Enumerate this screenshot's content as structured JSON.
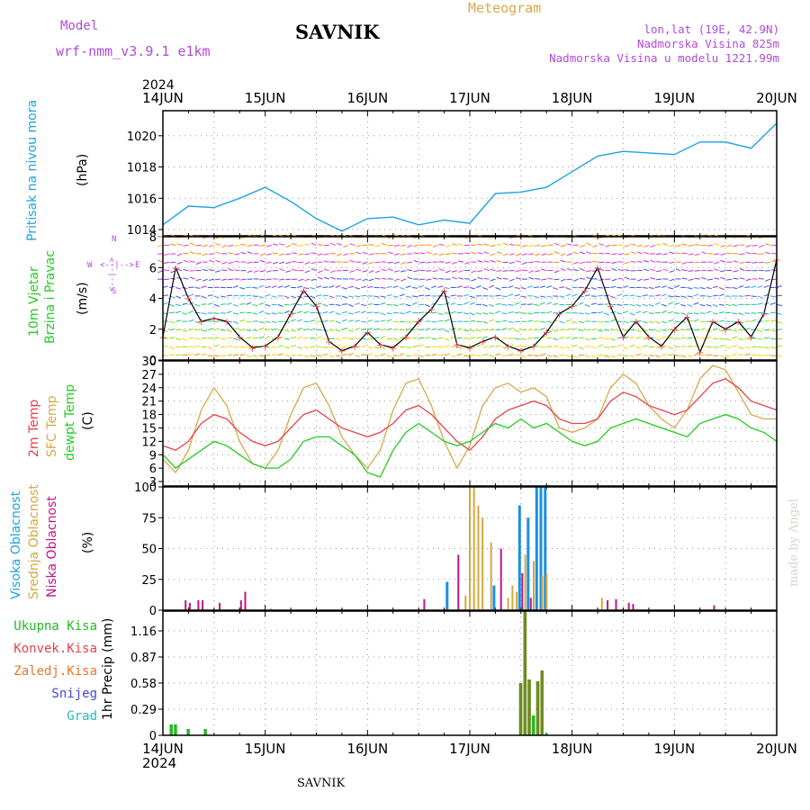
{
  "header": {
    "model_label": "Model",
    "model_name": "wrf-nmm_v3.9.1  e1km",
    "station": "SAVNIK",
    "meteogram": "Meteogram",
    "lonlat": "lon,lat (19E, 42.9N)",
    "elevation": "Nadmorska Visina 825m",
    "model_elevation": "Nadmorska Visina u modelu 1221.99m",
    "watermark": "made by Angel",
    "footer_station": "SAVNIK"
  },
  "colors": {
    "pressure": "#1ba3e0",
    "temp2m": "#e8424a",
    "sfc": "#d8a84a",
    "dewpt": "#22cc22",
    "high_cloud": "#1b8fe0",
    "mid_cloud": "#d4a840",
    "low_cloud": "#c0128a",
    "precip_total": "#22bb22",
    "precip_conv": "#e8424a",
    "precip_strat": "#e8742a",
    "snow": "#4444dd",
    "hail": "#22bbbb",
    "violet": "#b04ad8"
  },
  "time_axis": {
    "top_year": "2024",
    "bottom_year": "2024",
    "labels": [
      "14JUN",
      "15JUN",
      "16JUN",
      "17JUN",
      "18JUN",
      "19JUN",
      "20JUN"
    ]
  },
  "panels": {
    "pressure": {
      "label": "Pritisak na nivou mora",
      "unit": "(hPa)"
    },
    "wind": {
      "label_line1": "10m Vjetar",
      "label_line2": "Brzina i Pravac",
      "unit": "(m/s)",
      "compass_n": "N",
      "compass_s": "S",
      "compass_w": "W",
      "compass_e": "E",
      "compass_ns": "<--|-->",
      "compass_we": "<--|-->"
    },
    "temp": {
      "label_2m": "2m Temp",
      "label_sfc": "SFC Temp",
      "label_dew": "dewpt Temp",
      "unit": "(C)"
    },
    "cloud": {
      "label_high": "Visoka Oblacnost",
      "label_mid": "Srednja Oblacnost",
      "label_low": "Niska Oblacnost",
      "unit": "(%)"
    },
    "precip": {
      "legend": [
        "Ukupna Kisa",
        "Konvek.Kisa",
        "Zaledj.Kisa",
        "Snijeg",
        "Grad"
      ],
      "unit": "1hr Precip (mm)"
    }
  },
  "chart_data": [
    {
      "type": "line",
      "title": "Pritisak na nivou mora",
      "ylabel": "(hPa)",
      "ylim": [
        1013.6,
        1021.6
      ],
      "yticks": [
        "1014",
        "1016",
        "1018",
        "1020"
      ],
      "x_hours": [
        0,
        6,
        12,
        18,
        24,
        30,
        36,
        42,
        48,
        54,
        60,
        66,
        72,
        78,
        84,
        90,
        96,
        102,
        108,
        114,
        120,
        126,
        132,
        138,
        144
      ],
      "series": [
        {
          "values": [
            1014.3,
            1015.5,
            1015.4,
            1016.0,
            1016.7,
            1015.8,
            1014.7,
            1013.9,
            1014.7,
            1014.8,
            1014.3,
            1014.6,
            1014.4,
            1016.3,
            1016.4,
            1016.7,
            1017.7,
            1018.7,
            1019.0,
            1018.9,
            1018.8,
            1019.6,
            1019.6,
            1019.2,
            1020.8
          ]
        }
      ]
    },
    {
      "type": "line",
      "title": "10m Vjetar Brzina i Pravac",
      "ylabel": "(m/s)",
      "ylim": [
        0,
        8
      ],
      "yticks": [
        "0",
        "2",
        "4",
        "6",
        "8"
      ],
      "x_hours": [
        0,
        3,
        6,
        9,
        12,
        15,
        18,
        21,
        24,
        27,
        30,
        33,
        36,
        39,
        42,
        45,
        48,
        51,
        54,
        57,
        60,
        63,
        66,
        69,
        72,
        75,
        78,
        81,
        84,
        87,
        90,
        93,
        96,
        99,
        102,
        105,
        108,
        111,
        114,
        117,
        120,
        123,
        126,
        129,
        132,
        135,
        138,
        141,
        144
      ],
      "series": [
        {
          "values": [
            1.5,
            6.0,
            4.0,
            2.5,
            2.7,
            2.5,
            1.5,
            0.8,
            0.9,
            1.5,
            3.0,
            4.5,
            3.5,
            1.2,
            0.6,
            0.9,
            1.8,
            1.0,
            0.8,
            1.5,
            2.5,
            3.3,
            4.5,
            1.0,
            0.8,
            1.2,
            1.5,
            0.9,
            0.6,
            0.9,
            1.8,
            3.0,
            3.5,
            4.5,
            6.0,
            3.5,
            1.5,
            2.5,
            1.5,
            0.9,
            2.0,
            2.8,
            0.5,
            2.5,
            2.0,
            2.5,
            1.5,
            3.0,
            6.5
          ]
        }
      ]
    },
    {
      "type": "line",
      "title": "2m Temp / SFC Temp / dewpt Temp",
      "ylabel": "(C)",
      "ylim": [
        2,
        30
      ],
      "yticks": [
        "3",
        "6",
        "9",
        "12",
        "15",
        "18",
        "21",
        "24",
        "27",
        "30"
      ],
      "x_hours": [
        0,
        3,
        6,
        9,
        12,
        15,
        18,
        21,
        24,
        27,
        30,
        33,
        36,
        39,
        42,
        45,
        48,
        51,
        54,
        57,
        60,
        63,
        66,
        69,
        72,
        75,
        78,
        81,
        84,
        87,
        90,
        93,
        96,
        99,
        102,
        105,
        108,
        111,
        114,
        117,
        120,
        123,
        126,
        129,
        132,
        135,
        138,
        141,
        144
      ],
      "series": [
        {
          "name": "2m Temp",
          "values": [
            11,
            10,
            12,
            16,
            18,
            17,
            14,
            12,
            11,
            12,
            15,
            18,
            19,
            17,
            15,
            14,
            13,
            14,
            16,
            19,
            20,
            18,
            15,
            12,
            10,
            13,
            17,
            19,
            20,
            21,
            20,
            17,
            16,
            16,
            17,
            21,
            23,
            22,
            20,
            19,
            18,
            19,
            22,
            25,
            26,
            24,
            21,
            20,
            19
          ]
        },
        {
          "name": "SFC Temp",
          "values": [
            8,
            5,
            10,
            19,
            24,
            20,
            12,
            7,
            6,
            10,
            18,
            24,
            25,
            20,
            13,
            9,
            6,
            10,
            19,
            25,
            26,
            20,
            12,
            6,
            11,
            20,
            24,
            25,
            23,
            24,
            22,
            15,
            14,
            15,
            17,
            24,
            27,
            25,
            20,
            17,
            15,
            19,
            26,
            29,
            28,
            23,
            18,
            17,
            17
          ]
        },
        {
          "name": "dewpt Temp",
          "values": [
            9,
            6,
            8,
            10,
            12,
            11,
            9,
            7,
            6,
            6,
            8,
            12,
            13,
            13,
            11,
            9,
            5,
            4,
            10,
            14,
            16,
            14,
            12,
            11,
            12,
            14,
            16,
            15,
            17,
            15,
            16,
            14,
            12,
            11,
            12,
            15,
            16,
            17,
            16,
            15,
            14,
            13,
            16,
            17,
            18,
            17,
            15,
            14,
            12
          ]
        }
      ]
    },
    {
      "type": "bar",
      "title": "Visoka / Srednja / Niska Oblacnost",
      "ylabel": "(%)",
      "ylim": [
        0,
        100
      ],
      "yticks": [
        "0",
        "25",
        "50",
        "75",
        "100"
      ],
      "series": [
        {
          "name": "Visoka Oblacnost",
          "points": [
            [
              67,
              23
            ],
            [
              78,
              20
            ],
            [
              84,
              85
            ],
            [
              86,
              75
            ],
            [
              88,
              100
            ],
            [
              89,
              100
            ],
            [
              90,
              100
            ]
          ]
        },
        {
          "name": "Srednja Oblacnost",
          "points": [
            [
              71,
              12
            ],
            [
              72,
              100
            ],
            [
              73,
              100
            ],
            [
              74,
              85
            ],
            [
              75,
              75
            ],
            [
              77,
              55
            ],
            [
              81,
              10
            ],
            [
              82,
              20
            ],
            [
              83,
              15
            ],
            [
              85,
              45
            ],
            [
              87,
              40
            ],
            [
              89,
              28
            ],
            [
              90,
              30
            ],
            [
              103,
              10
            ]
          ]
        },
        {
          "name": "Niska Oblacnost",
          "points": [
            [
              5,
              8
            ],
            [
              6,
              6
            ],
            [
              8,
              8
            ],
            [
              9,
              8
            ],
            [
              13,
              6
            ],
            [
              18,
              8
            ],
            [
              19,
              15
            ],
            [
              25,
              1
            ],
            [
              61,
              9
            ],
            [
              69,
              45
            ],
            [
              79,
              50
            ],
            [
              84,
              30
            ],
            [
              86,
              10
            ],
            [
              104,
              8
            ],
            [
              106,
              9
            ],
            [
              109,
              6
            ],
            [
              110,
              5
            ],
            [
              129,
              4
            ]
          ]
        }
      ]
    },
    {
      "type": "bar",
      "title": "1hr Precip",
      "ylabel": "1hr Precip (mm)",
      "ylim": [
        0,
        1.38
      ],
      "yticks": [
        "0",
        "0.29",
        "0.58",
        "0.87",
        "1.16"
      ],
      "series": [
        {
          "name": "Ukupna Kisa",
          "points": [
            [
              2,
              0.12
            ],
            [
              3,
              0.12
            ],
            [
              6,
              0.07
            ],
            [
              10,
              0.07
            ],
            [
              84,
              0.58
            ],
            [
              85,
              1.38
            ],
            [
              86,
              0.62
            ],
            [
              87,
              0.22
            ],
            [
              88,
              0.6
            ],
            [
              89,
              0.72
            ],
            [
              90,
              0.02
            ]
          ]
        }
      ]
    }
  ]
}
